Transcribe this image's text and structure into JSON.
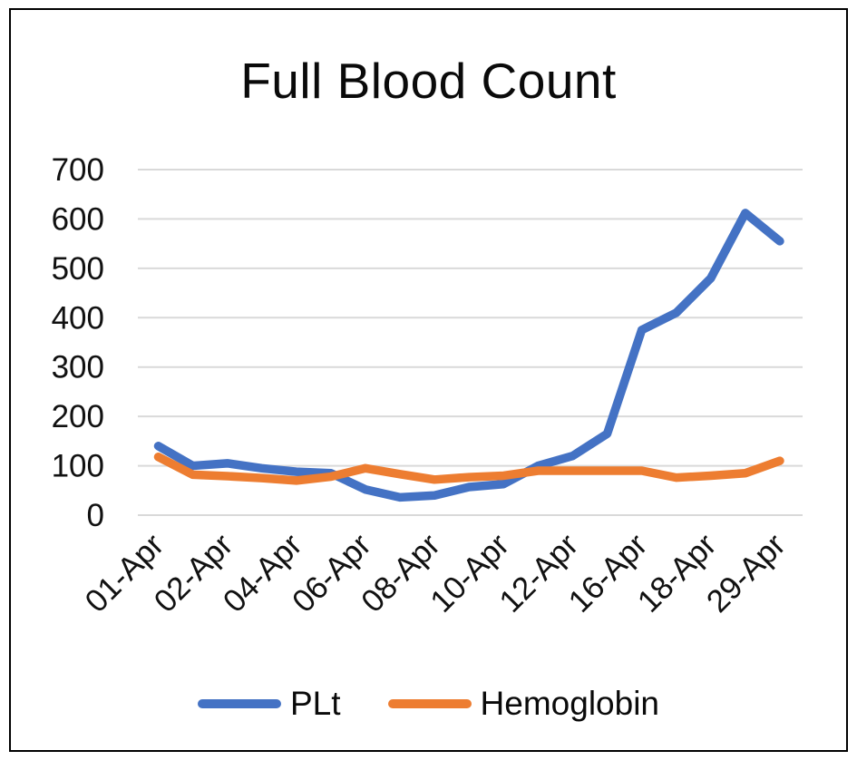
{
  "chart_data": {
    "type": "line",
    "title": "Full Blood Count",
    "xlabel": "",
    "ylabel": "",
    "ylim": [
      0,
      700
    ],
    "y_ticks": [
      0,
      100,
      200,
      300,
      400,
      500,
      600,
      700
    ],
    "grid": true,
    "legend_position": "bottom",
    "num_points": 19,
    "x_tick_labels": [
      "01-Apr",
      "02-Apr",
      "04-Apr",
      "06-Apr",
      "08-Apr",
      "10-Apr",
      "12-Apr",
      "16-Apr",
      "18-Apr",
      "29-Apr"
    ],
    "labeled_point_indices": [
      0,
      2,
      4,
      6,
      8,
      10,
      12,
      14,
      16,
      18
    ],
    "series": [
      {
        "name": "PLt",
        "color": "#4472C4",
        "values": [
          140,
          100,
          105,
          95,
          88,
          85,
          52,
          36,
          40,
          57,
          63,
          100,
          120,
          165,
          375,
          410,
          480,
          612,
          555
        ]
      },
      {
        "name": "Hemoglobin",
        "color": "#ED7D31",
        "values": [
          118,
          82,
          79,
          75,
          70,
          78,
          95,
          83,
          72,
          77,
          80,
          90,
          90,
          90,
          90,
          76,
          80,
          85,
          110
        ]
      }
    ]
  }
}
